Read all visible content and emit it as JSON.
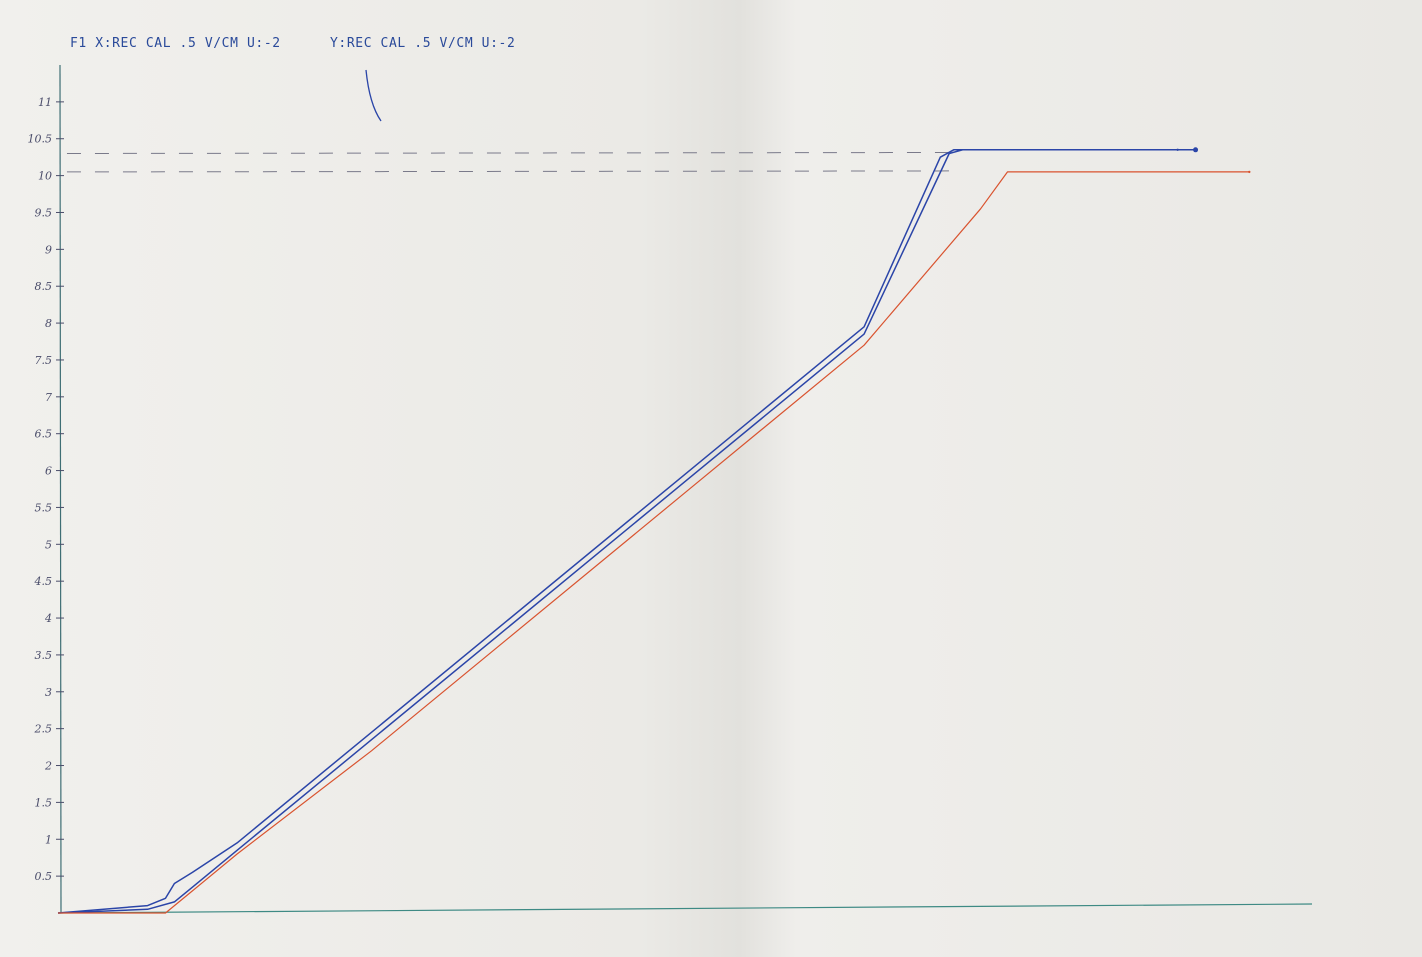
{
  "header": {
    "x_channel": "F1 X:REC CAL  .5 V/CM U:-2",
    "y_channel": "Y:REC CAL  .5 V/CM U:-2"
  },
  "chart_data": {
    "type": "line",
    "title": "",
    "xlabel": "",
    "ylabel": "",
    "xlim": [
      0,
      14
    ],
    "ylim": [
      0,
      11.5
    ],
    "grid": false,
    "yticks": [
      0.5,
      1,
      1.5,
      2,
      2.5,
      3,
      3.5,
      4,
      4.5,
      5,
      5.5,
      6,
      6.5,
      7,
      7.5,
      8,
      8.5,
      9,
      9.5,
      10,
      10.5,
      11
    ],
    "ytick_labels": [
      "0.5",
      "1",
      "1.5",
      "2",
      "2.5",
      "3",
      "3.5",
      "4",
      "4.5",
      "5",
      "5.5",
      "6",
      "6.5",
      "7",
      "7.5",
      "8",
      "8.5",
      "9",
      "9.5",
      "10",
      "10.5",
      "11"
    ],
    "reference_lines": [
      {
        "y": 10.3,
        "style": "dashed",
        "color": "#7a7a8a"
      },
      {
        "y": 10.05,
        "style": "dashed",
        "color": "#7a7a8a"
      }
    ],
    "series": [
      {
        "color": "#2b45a8",
        "x": [
          0.0,
          1.0,
          1.2,
          1.3,
          1.5,
          2.0,
          3.5,
          5.0,
          7.0,
          9.0,
          9.85,
          10.0,
          12.7
        ],
        "y": [
          0.0,
          0.1,
          0.2,
          0.4,
          0.55,
          0.95,
          2.45,
          3.95,
          5.95,
          7.95,
          10.25,
          10.35,
          10.35
        ]
      },
      {
        "color": "#2b45a8",
        "x": [
          0.0,
          1.0,
          1.3,
          1.5,
          2.0,
          3.5,
          5.0,
          7.0,
          9.0,
          9.95,
          10.1,
          12.5
        ],
        "y": [
          0.0,
          0.05,
          0.15,
          0.35,
          0.85,
          2.35,
          3.85,
          5.85,
          7.85,
          10.3,
          10.35,
          10.35
        ]
      },
      {
        "color": "#d9532f",
        "x": [
          0.0,
          1.2,
          1.5,
          2.0,
          3.5,
          5.0,
          7.0,
          9.0,
          10.3,
          10.6,
          13.3
        ],
        "y": [
          0.0,
          0.0,
          0.3,
          0.8,
          2.2,
          3.7,
          5.7,
          7.7,
          9.55,
          10.05,
          10.05
        ]
      }
    ]
  }
}
